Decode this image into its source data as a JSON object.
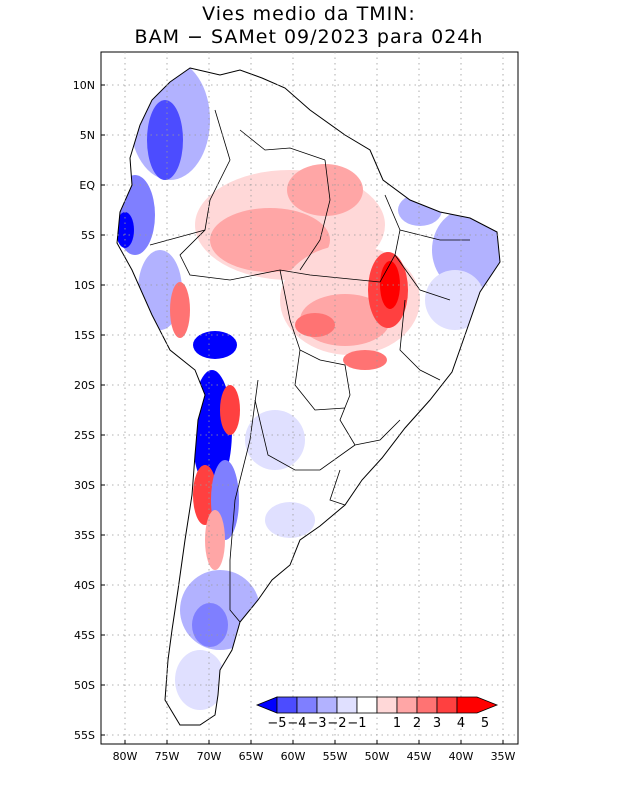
{
  "title_line1": "Vies medio da TMIN:",
  "title_line2": "BAM − SAMet 09/2023  para 024h",
  "lat_labels": [
    "10N",
    "5N",
    "EQ",
    "5S",
    "10S",
    "15S",
    "20S",
    "25S",
    "30S",
    "35S",
    "40S",
    "45S",
    "50S",
    "55S"
  ],
  "lon_labels": [
    "80W",
    "75W",
    "70W",
    "65W",
    "60W",
    "55W",
    "50W",
    "45W",
    "40W",
    "35W"
  ],
  "colorbar": {
    "labels": [
      "−5",
      "−4",
      "−3",
      "−2",
      "−1",
      "1",
      "2",
      "3",
      "4",
      "5"
    ],
    "colors": [
      "#0000ff",
      "#4c4cff",
      "#7f7fff",
      "#b2b2ff",
      "#e0e0ff",
      "#ffffff",
      "#ffd8d8",
      "#ffa6a6",
      "#ff7373",
      "#ff4040",
      "#ff0000"
    ]
  },
  "colors": {
    "land_neutral": "#ffffff",
    "grid": "#9a9a9a",
    "coast": "#000000"
  }
}
